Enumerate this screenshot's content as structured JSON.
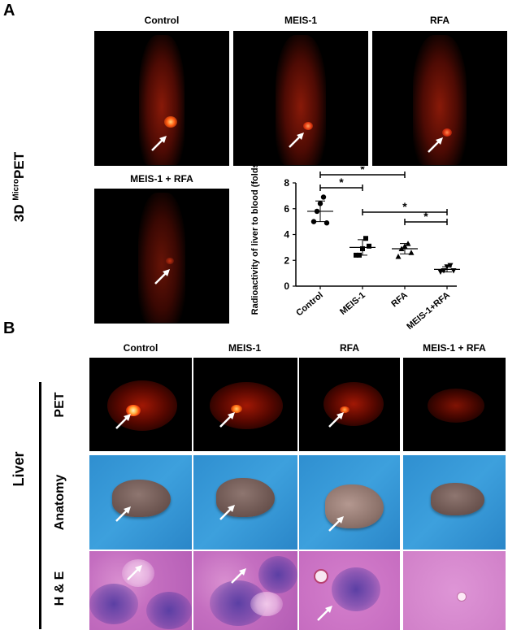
{
  "panel_a": {
    "letter": "A",
    "side_label_prefix": "3D ",
    "side_label_sup": "Micro",
    "side_label_suffix": "PET",
    "columns": [
      "Control",
      "MEIS-1",
      "RFA"
    ],
    "combo_label": "MEIS-1 + RFA"
  },
  "chart_data": {
    "type": "scatter",
    "ylabel": "Radioactivity of liver to blood (folds)",
    "xlabel": "",
    "categories": [
      "Control",
      "MEIS-1",
      "RFA",
      "MEIS-1+RFA"
    ],
    "ylim": [
      0,
      8
    ],
    "yticks": [
      "0",
      "2",
      "4",
      "6",
      "8"
    ],
    "markers": [
      "circle",
      "square",
      "triangle-up",
      "triangle-down"
    ],
    "points": [
      [
        5.0,
        5.8,
        6.4,
        6.9,
        4.9
      ],
      [
        2.4,
        2.4,
        2.9,
        3.7,
        3.1
      ],
      [
        2.3,
        2.9,
        3.1,
        3.3,
        2.6
      ],
      [
        1.1,
        1.2,
        1.5,
        1.6,
        1.2
      ]
    ],
    "means": [
      5.8,
      3.0,
      2.9,
      1.3
    ],
    "sds": [
      0.8,
      0.6,
      0.4,
      0.2
    ],
    "significance": [
      {
        "from": 0,
        "to": 1,
        "label": "*"
      },
      {
        "from": 0,
        "to": 2,
        "label": "*"
      },
      {
        "from": 1,
        "to": 3,
        "label": "*"
      },
      {
        "from": 2,
        "to": 3,
        "label": "*"
      }
    ],
    "grid": false
  },
  "panel_b": {
    "letter": "B",
    "columns": [
      "Control",
      "MEIS-1",
      "RFA",
      "MEIS-1 + RFA"
    ],
    "organ_label": "Liver",
    "rows": [
      "PET",
      "Anatomy",
      "H & E"
    ]
  }
}
